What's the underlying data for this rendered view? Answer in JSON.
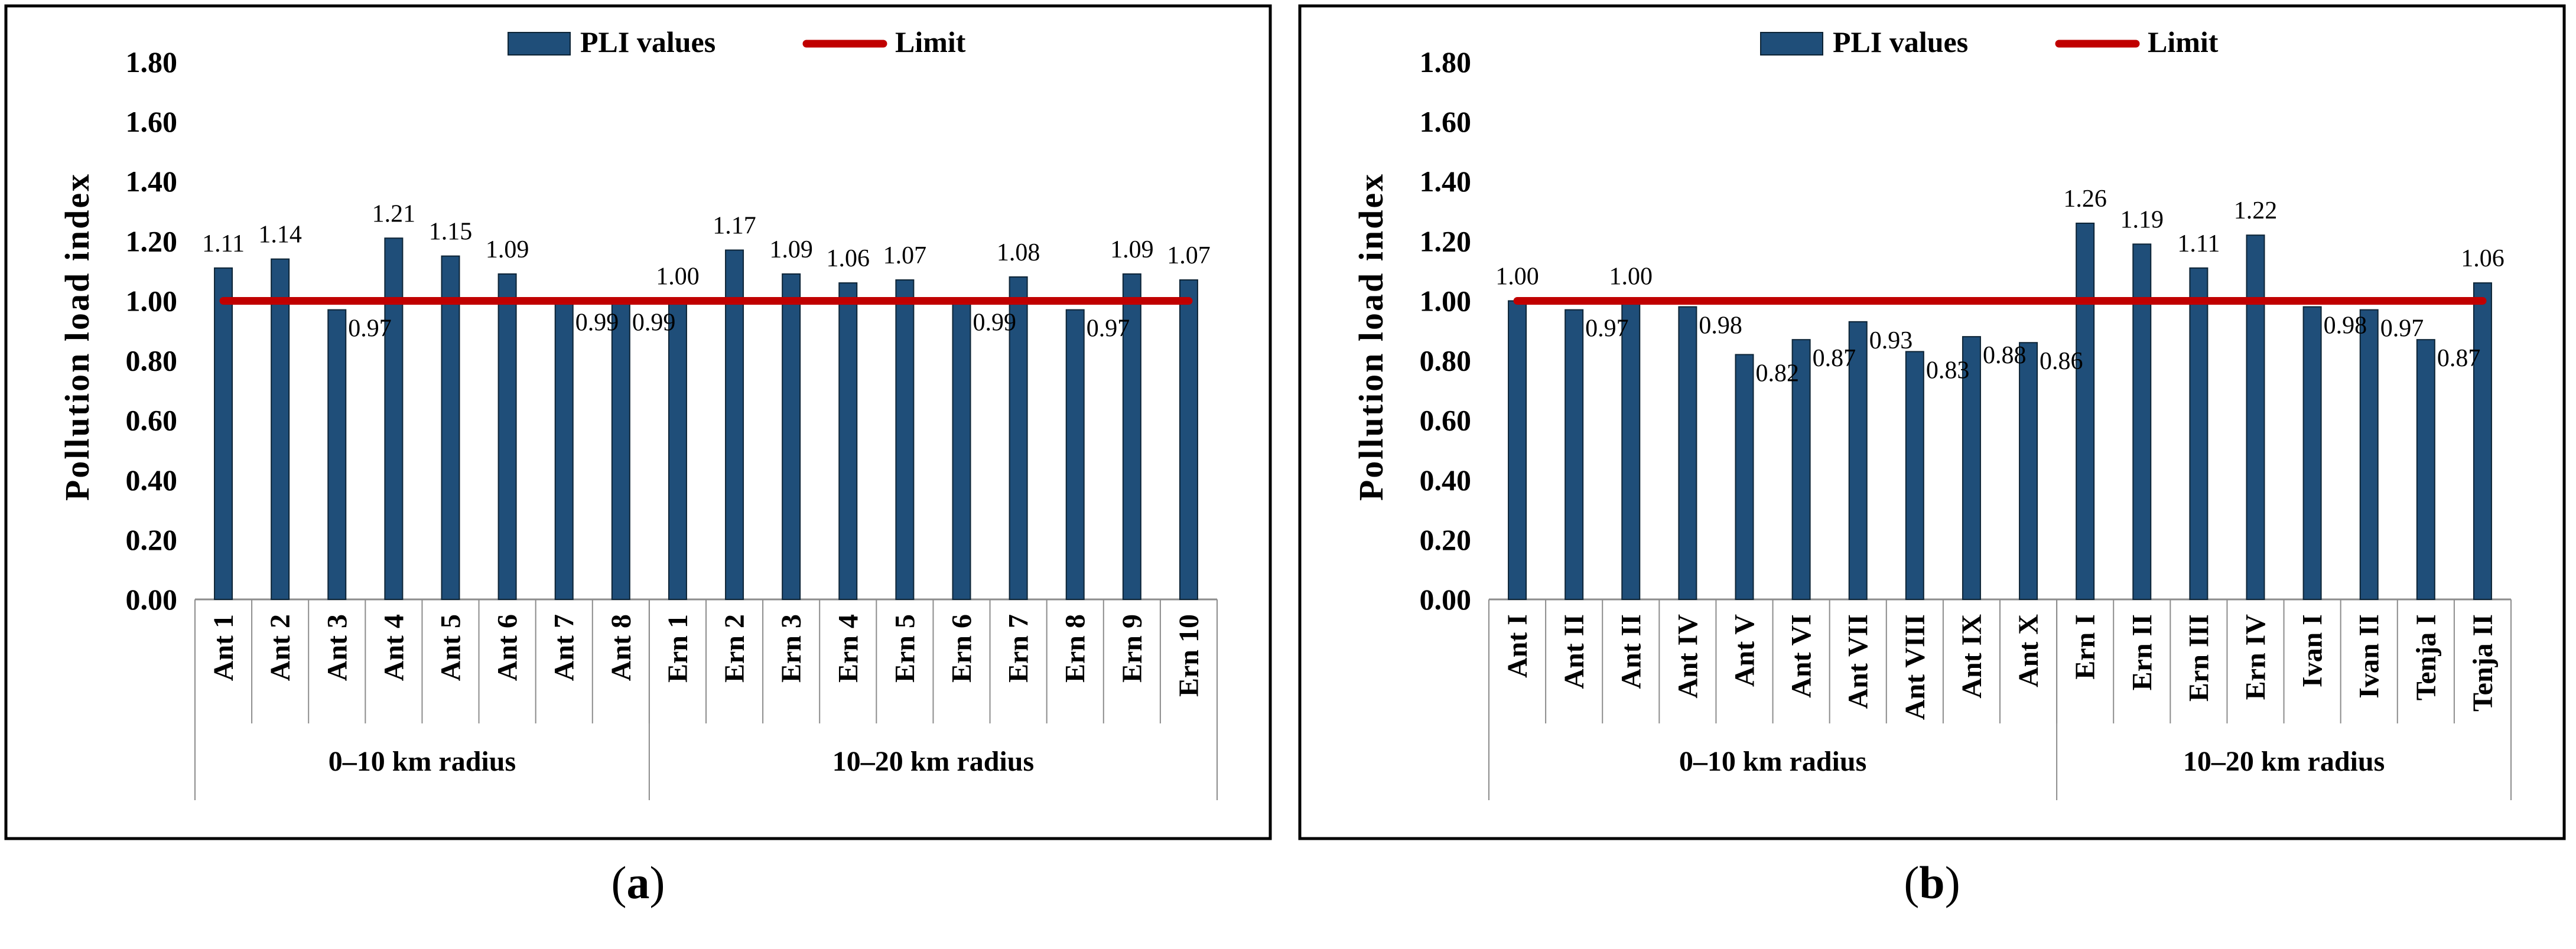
{
  "captions": {
    "a_open": "(",
    "a_letter": "a",
    "a_close": ")",
    "b_open": "(",
    "b_letter": "b",
    "b_close": ")"
  },
  "colors": {
    "bar": "#1F4E79",
    "bar_edge": "#0d2436",
    "limit": "#C00000",
    "frame": "#000000",
    "axis": "#8c8c8c"
  },
  "chart_data": [
    {
      "type": "bar",
      "panel": "a",
      "ylabel": "Pollution load index",
      "ylim": [
        0,
        1.8
      ],
      "yticks": [
        "0.00",
        "0.20",
        "0.40",
        "0.60",
        "0.80",
        "1.00",
        "1.20",
        "1.40",
        "1.60",
        "1.80"
      ],
      "legend": {
        "bar_label": "PLI values",
        "line_label": "Limit",
        "position": "top"
      },
      "limit": 1.0,
      "categories": [
        "Ant 1",
        "Ant 2",
        "Ant 3",
        "Ant 4",
        "Ant 5",
        "Ant 6",
        "Ant 7",
        "Ant 8",
        "Ern 1",
        "Ern 2",
        "Ern 3",
        "Ern 4",
        "Ern 5",
        "Ern 6",
        "Ern 7",
        "Ern 8",
        "Ern 9",
        "Ern 10"
      ],
      "series": [
        {
          "name": "PLI values",
          "values": [
            1.11,
            1.14,
            0.97,
            1.21,
            1.15,
            1.09,
            0.99,
            0.99,
            1.0,
            1.17,
            1.09,
            1.06,
            1.07,
            0.99,
            1.08,
            0.97,
            1.09,
            1.07
          ]
        }
      ],
      "labels": [
        "1.11",
        "1.14",
        "0.97",
        "1.21",
        "1.15",
        "1.09",
        "0.99",
        "0.99",
        "1.00",
        "1.17",
        "1.09",
        "1.06",
        "1.07",
        "0.99",
        "1.08",
        "0.97",
        "1.09",
        "1.07"
      ],
      "groups": [
        {
          "name": "0–10 km radius",
          "count": 8
        },
        {
          "name": "10–20 km radius",
          "count": 10
        }
      ]
    },
    {
      "type": "bar",
      "panel": "b",
      "ylabel": "Pollution load index",
      "ylim": [
        0,
        1.8
      ],
      "yticks": [
        "0.00",
        "0.20",
        "0.40",
        "0.60",
        "0.80",
        "1.00",
        "1.20",
        "1.40",
        "1.60",
        "1.80"
      ],
      "legend": {
        "bar_label": "PLI values",
        "line_label": "Limit",
        "position": "top"
      },
      "limit": 1.0,
      "categories": [
        "Ant I",
        "Ant II",
        "Ant II",
        "Ant IV",
        "Ant V",
        "Ant VI",
        "Ant VII",
        "Ant VIII",
        "Ant IX",
        "Ant X",
        "Ern I",
        "Ern II",
        "Ern III",
        "Ern IV",
        "Ivan I",
        "Ivan II",
        "Tenja I",
        "Tenja II"
      ],
      "series": [
        {
          "name": "PLI values",
          "values": [
            1.0,
            0.97,
            1.0,
            0.98,
            0.82,
            0.87,
            0.93,
            0.83,
            0.88,
            0.86,
            1.26,
            1.19,
            1.11,
            1.22,
            0.98,
            0.97,
            0.87,
            1.06
          ]
        }
      ],
      "labels": [
        "1.00",
        "0.97",
        "1.00",
        "0.98",
        "0.82",
        "0.87",
        "0.93",
        "0.83",
        "0.88",
        "0.86",
        "1.26",
        "1.19",
        "1.11",
        "1.22",
        "0.98",
        "0.97",
        "0.87",
        "1.06"
      ],
      "groups": [
        {
          "name": "0–10 km radius",
          "count": 10
        },
        {
          "name": "10–20 km radius",
          "count": 8
        }
      ]
    }
  ]
}
